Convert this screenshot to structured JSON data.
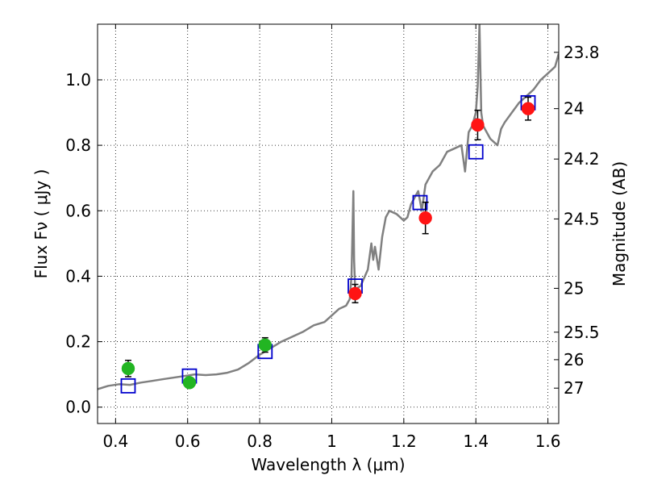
{
  "chart_data": {
    "type": "scatter",
    "title": "",
    "xlabel": "Wavelength  λ (μm)",
    "ylabel": "Flux  Fν  ( μJy )",
    "y2label": "Magnitude (AB)",
    "xlim": [
      0.35,
      1.63
    ],
    "ylim": [
      -0.05,
      1.17
    ],
    "grid": true,
    "x_ticks": [
      0.4,
      0.6,
      0.8,
      1.0,
      1.2,
      1.4,
      1.6
    ],
    "x_tick_labels": [
      "0.4",
      "0.6",
      "0.8",
      "1",
      "1.2",
      "1.4",
      "1.6"
    ],
    "y_ticks": [
      0.0,
      0.2,
      0.4,
      0.6,
      0.8,
      1.0
    ],
    "y_tick_labels": [
      "0.0",
      "0.2",
      "0.4",
      "0.6",
      "0.8",
      "1.0"
    ],
    "right_ticks": [
      {
        "flux": 1.084,
        "label": "23.8"
      },
      {
        "flux": 0.912,
        "label": "24"
      },
      {
        "flux": 0.758,
        "label": "24.2"
      },
      {
        "flux": 0.575,
        "label": "24.5"
      },
      {
        "flux": 0.363,
        "label": "25"
      },
      {
        "flux": 0.229,
        "label": "25.5"
      },
      {
        "flux": 0.145,
        "label": "26"
      },
      {
        "flux": 0.058,
        "label": "27"
      }
    ],
    "colors": {
      "model_line": "#808080",
      "green_points": "#22b522",
      "red_points": "#ff1414",
      "model_boxes": "#0000cc",
      "error_bars": "#000000"
    },
    "series": [
      {
        "kind": "line",
        "x": [
          0.35,
          0.38,
          0.41,
          0.44,
          0.47,
          0.5,
          0.53,
          0.56,
          0.59,
          0.62,
          0.65,
          0.68,
          0.71,
          0.74,
          0.77,
          0.8,
          0.83,
          0.86,
          0.89,
          0.92,
          0.95,
          0.98,
          1.0,
          1.02,
          1.04,
          1.05,
          1.055,
          1.06,
          1.062,
          1.065,
          1.08,
          1.1,
          1.11,
          1.115,
          1.12,
          1.13,
          1.14,
          1.15,
          1.16,
          1.18,
          1.2,
          1.21,
          1.22,
          1.24,
          1.25,
          1.26,
          1.28,
          1.3,
          1.32,
          1.34,
          1.36,
          1.37,
          1.38,
          1.39,
          1.4,
          1.405,
          1.41,
          1.415,
          1.42,
          1.44,
          1.46,
          1.47,
          1.48,
          1.5,
          1.52,
          1.54,
          1.56,
          1.58,
          1.6,
          1.62,
          1.63
        ],
        "y": [
          0.055,
          0.065,
          0.07,
          0.068,
          0.075,
          0.08,
          0.085,
          0.09,
          0.095,
          0.1,
          0.098,
          0.1,
          0.105,
          0.115,
          0.135,
          0.16,
          0.18,
          0.2,
          0.215,
          0.23,
          0.25,
          0.26,
          0.28,
          0.3,
          0.31,
          0.33,
          0.4,
          0.66,
          0.45,
          0.36,
          0.37,
          0.42,
          0.5,
          0.45,
          0.49,
          0.42,
          0.52,
          0.58,
          0.6,
          0.59,
          0.57,
          0.58,
          0.62,
          0.66,
          0.6,
          0.68,
          0.72,
          0.74,
          0.78,
          0.79,
          0.8,
          0.72,
          0.84,
          0.86,
          0.9,
          0.98,
          1.17,
          0.9,
          0.86,
          0.82,
          0.8,
          0.85,
          0.87,
          0.9,
          0.93,
          0.95,
          0.97,
          1.0,
          1.02,
          1.04,
          1.08
        ]
      },
      {
        "kind": "points",
        "x": [
          0.435,
          0.605,
          0.815
        ],
        "y": [
          0.118,
          0.075,
          0.19
        ],
        "yerr": [
          0.025,
          0.015,
          0.022
        ]
      },
      {
        "kind": "points",
        "x": [
          1.065,
          1.26,
          1.405,
          1.545
        ],
        "y": [
          0.347,
          0.578,
          0.862,
          0.912
        ],
        "yerr": [
          0.028,
          0.048,
          0.045,
          0.035
        ]
      },
      {
        "kind": "boxes",
        "x": [
          0.435,
          0.605,
          0.815,
          1.065,
          1.245,
          1.4,
          1.545
        ],
        "y": [
          0.065,
          0.095,
          0.17,
          0.37,
          0.625,
          0.78,
          0.93
        ]
      }
    ]
  }
}
